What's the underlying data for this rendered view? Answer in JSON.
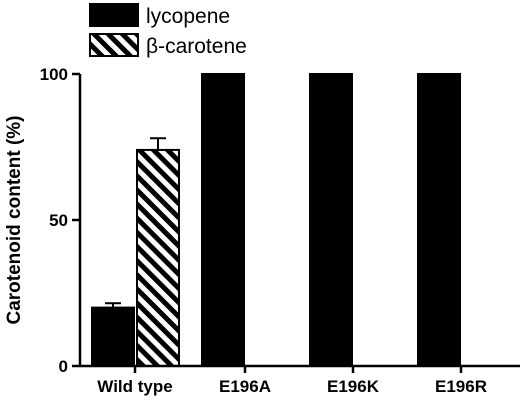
{
  "chart_data": {
    "type": "bar",
    "categories": [
      "Wild type",
      "E196A",
      "E196K",
      "E196R"
    ],
    "series": [
      {
        "name": "lycopene",
        "values": [
          20,
          100,
          100,
          100
        ],
        "errors": [
          1.5,
          null,
          null,
          null
        ],
        "fill": "solid",
        "color": "#000000"
      },
      {
        "name": "β-carotene",
        "values": [
          74,
          0,
          0,
          0
        ],
        "errors": [
          4,
          null,
          null,
          null
        ],
        "fill": "hatched",
        "color": "#000000"
      }
    ],
    "ylabel": "Carotenoid content (%)",
    "xlabel": "",
    "ylim": [
      0,
      100
    ],
    "yticks": [
      0,
      50,
      100
    ],
    "legend_position": "top-left",
    "grid": false
  }
}
